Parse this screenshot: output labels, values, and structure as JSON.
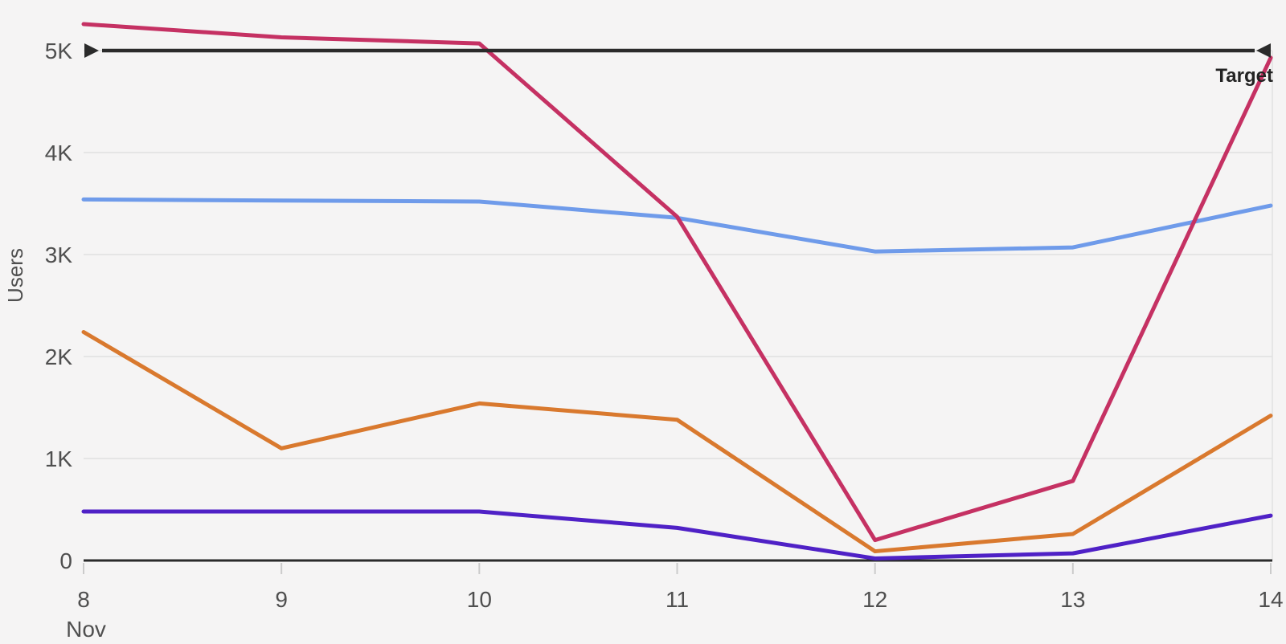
{
  "chart_data": {
    "type": "line",
    "title": "",
    "ylabel": "Users",
    "month_label": "Nov",
    "x_categories": [
      "8",
      "9",
      "10",
      "11",
      "12",
      "13",
      "14"
    ],
    "y_ticks": [
      "0",
      "1K",
      "2K",
      "3K",
      "4K",
      "5K"
    ],
    "y_tick_values": [
      0,
      1000,
      2000,
      3000,
      4000,
      5000
    ],
    "ylim": [
      0,
      5350
    ],
    "grid": "horizontal",
    "legend": "none",
    "series": [
      {
        "name": "blue-series",
        "color": "#6f9bea",
        "values": [
          3540,
          3530,
          3520,
          3360,
          3030,
          3070,
          3480
        ]
      },
      {
        "name": "orange-series",
        "color": "#d9792e",
        "values": [
          2240,
          1100,
          1540,
          1380,
          90,
          260,
          1420
        ]
      },
      {
        "name": "purple-series",
        "color": "#4f21c6",
        "values": [
          480,
          480,
          480,
          320,
          20,
          70,
          440
        ]
      },
      {
        "name": "magenta-series",
        "color": "#c53163",
        "values": [
          5260,
          5130,
          5070,
          3370,
          200,
          780,
          4930
        ]
      }
    ],
    "reference_line": {
      "label": "Target",
      "value": 5000,
      "color": "#2b2b2b"
    }
  },
  "colors": {
    "background": "#f5f4f4",
    "gridline": "#e0e0e0",
    "right_border": "#e2e2e2",
    "axis_line": "#2b2b2b",
    "tick_mark": "#cbcbcb",
    "tick_text": "#4f4f4f",
    "target": "#2b2b2b"
  }
}
